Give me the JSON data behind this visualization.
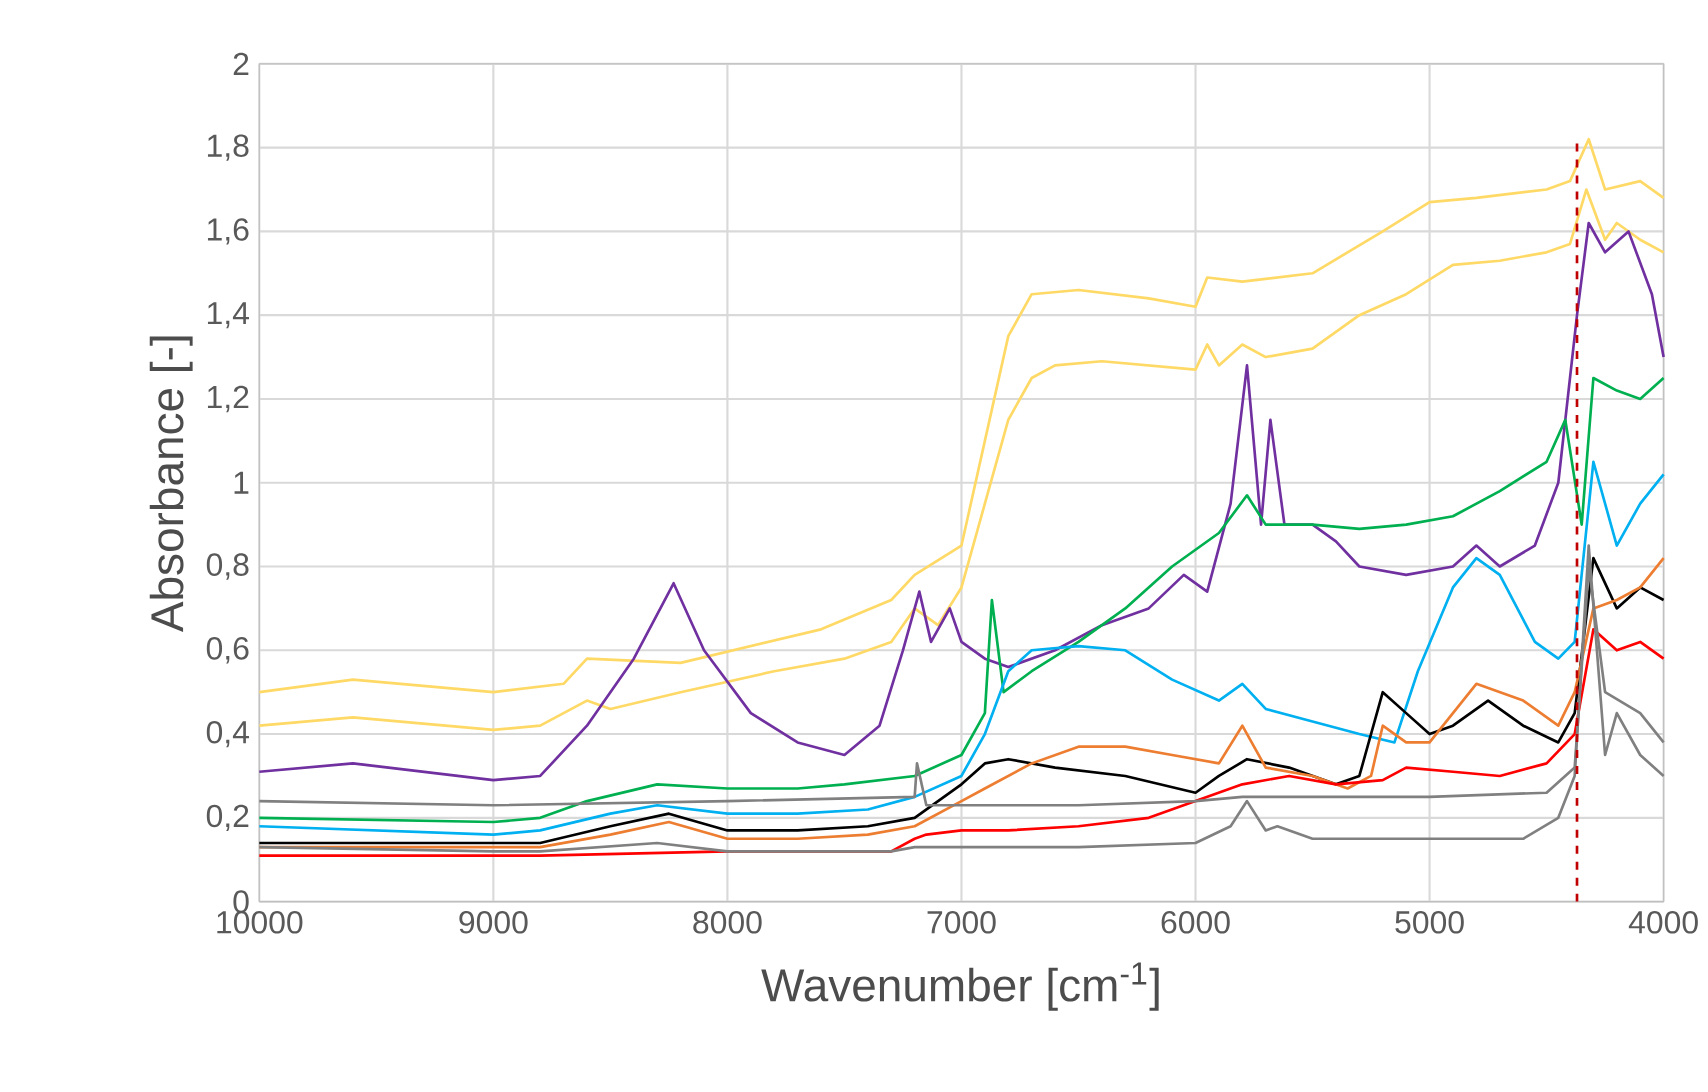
{
  "chart_data": {
    "type": "line",
    "xlabel": "Wavenumber [cm$^{-1}$]",
    "ylabel": "Absorbance [-]",
    "xlim": [
      10000,
      4000
    ],
    "xticks": [
      10000,
      9000,
      8000,
      7000,
      6000,
      5000,
      4000
    ],
    "ylim": [
      0,
      2
    ],
    "yticks": [
      0,
      {
        "value": 0.2,
        "label": "0,2"
      },
      {
        "value": 0.4,
        "label": "0,4"
      },
      {
        "value": 0.6,
        "label": "0,6"
      },
      {
        "value": 0.8,
        "label": "0,8"
      },
      1,
      {
        "value": 1.2,
        "label": "1,2"
      },
      {
        "value": 1.4,
        "label": "1,4"
      },
      {
        "value": 1.6,
        "label": "1,6"
      },
      {
        "value": 1.8,
        "label": "1,8"
      },
      2
    ],
    "grid": true,
    "line_style": "solid",
    "ref_lines": [
      {
        "axis": "x",
        "value": 4370,
        "color": "#c00000",
        "line_style": "dashed"
      }
    ],
    "series": [
      {
        "color": "#ffd966",
        "x": [
          10000,
          9600,
          9000,
          8800,
          8600,
          8500,
          8200,
          7800,
          7500,
          7300,
          7200,
          7100,
          7000,
          6900,
          6800,
          6700,
          6600,
          6400,
          6200,
          6000,
          5950,
          5900,
          5800,
          5700,
          5500,
          5300,
          5100,
          4900,
          4700,
          4500,
          4400,
          4330,
          4250,
          4200,
          4100,
          4000
        ],
        "values": [
          0.42,
          0.44,
          0.41,
          0.42,
          0.48,
          0.46,
          0.5,
          0.55,
          0.58,
          0.62,
          0.7,
          0.66,
          0.75,
          0.95,
          1.15,
          1.25,
          1.28,
          1.29,
          1.28,
          1.27,
          1.33,
          1.28,
          1.33,
          1.3,
          1.32,
          1.4,
          1.45,
          1.52,
          1.53,
          1.55,
          1.57,
          1.7,
          1.58,
          1.62,
          1.58,
          1.55
        ]
      },
      {
        "color": "#ffd966",
        "x": [
          10000,
          9600,
          9000,
          8700,
          8600,
          8200,
          7600,
          7300,
          7200,
          7000,
          6900,
          6800,
          6700,
          6500,
          6200,
          6000,
          5950,
          5800,
          5500,
          5200,
          5000,
          4800,
          4500,
          4400,
          4320,
          4250,
          4100,
          4000
        ],
        "values": [
          0.5,
          0.53,
          0.5,
          0.52,
          0.58,
          0.57,
          0.65,
          0.72,
          0.78,
          0.85,
          1.1,
          1.35,
          1.45,
          1.46,
          1.44,
          1.42,
          1.49,
          1.48,
          1.5,
          1.6,
          1.67,
          1.68,
          1.7,
          1.72,
          1.82,
          1.7,
          1.72,
          1.68
        ]
      },
      {
        "color": "#7030a0",
        "x": [
          10000,
          9600,
          9000,
          8800,
          8600,
          8400,
          8230,
          8100,
          7900,
          7700,
          7500,
          7350,
          7250,
          7180,
          7130,
          7050,
          7000,
          6900,
          6800,
          6600,
          6400,
          6200,
          6050,
          5950,
          5850,
          5780,
          5720,
          5680,
          5620,
          5500,
          5400,
          5300,
          5100,
          4900,
          4800,
          4700,
          4550,
          4450,
          4370,
          4320,
          4250,
          4150,
          4050,
          4000
        ],
        "values": [
          0.31,
          0.33,
          0.29,
          0.3,
          0.42,
          0.58,
          0.76,
          0.6,
          0.45,
          0.38,
          0.35,
          0.42,
          0.6,
          0.74,
          0.62,
          0.7,
          0.62,
          0.58,
          0.56,
          0.6,
          0.66,
          0.7,
          0.78,
          0.74,
          0.95,
          1.28,
          0.9,
          1.15,
          0.9,
          0.9,
          0.86,
          0.8,
          0.78,
          0.8,
          0.85,
          0.8,
          0.85,
          1.0,
          1.4,
          1.62,
          1.55,
          1.6,
          1.45,
          1.3
        ]
      },
      {
        "color": "#00b050",
        "x": [
          10000,
          9000,
          8800,
          8600,
          8300,
          8000,
          7700,
          7500,
          7200,
          7000,
          6900,
          6870,
          6820,
          6700,
          6500,
          6300,
          6100,
          5900,
          5780,
          5700,
          5500,
          5300,
          5100,
          4900,
          4700,
          4500,
          4420,
          4350,
          4300,
          4200,
          4100,
          4000
        ],
        "values": [
          0.2,
          0.19,
          0.2,
          0.24,
          0.28,
          0.27,
          0.27,
          0.28,
          0.3,
          0.35,
          0.45,
          0.72,
          0.5,
          0.55,
          0.62,
          0.7,
          0.8,
          0.88,
          0.97,
          0.9,
          0.9,
          0.89,
          0.9,
          0.92,
          0.98,
          1.05,
          1.15,
          0.9,
          1.25,
          1.22,
          1.2,
          1.25
        ]
      },
      {
        "color": "#00b0f0",
        "x": [
          10000,
          9000,
          8800,
          8500,
          8300,
          8000,
          7700,
          7400,
          7200,
          7000,
          6900,
          6800,
          6700,
          6500,
          6300,
          6100,
          5900,
          5800,
          5700,
          5500,
          5300,
          5150,
          5050,
          4900,
          4800,
          4700,
          4550,
          4450,
          4380,
          4300,
          4200,
          4100,
          4000
        ],
        "values": [
          0.18,
          0.16,
          0.17,
          0.21,
          0.23,
          0.21,
          0.21,
          0.22,
          0.25,
          0.3,
          0.4,
          0.55,
          0.6,
          0.61,
          0.6,
          0.53,
          0.48,
          0.52,
          0.46,
          0.43,
          0.4,
          0.38,
          0.55,
          0.75,
          0.82,
          0.78,
          0.62,
          0.58,
          0.62,
          1.05,
          0.85,
          0.95,
          1.02
        ]
      },
      {
        "color": "#000000",
        "x": [
          10000,
          9000,
          8800,
          8500,
          8250,
          8000,
          7700,
          7400,
          7200,
          7000,
          6900,
          6800,
          6600,
          6300,
          6000,
          5900,
          5780,
          5600,
          5400,
          5300,
          5200,
          5100,
          5000,
          4900,
          4750,
          4600,
          4450,
          4380,
          4300,
          4200,
          4100,
          4000
        ],
        "values": [
          0.14,
          0.14,
          0.14,
          0.18,
          0.21,
          0.17,
          0.17,
          0.18,
          0.2,
          0.28,
          0.33,
          0.34,
          0.32,
          0.3,
          0.26,
          0.3,
          0.34,
          0.32,
          0.28,
          0.3,
          0.5,
          0.45,
          0.4,
          0.42,
          0.48,
          0.42,
          0.38,
          0.45,
          0.82,
          0.7,
          0.75,
          0.72
        ]
      },
      {
        "color": "#ed7d31",
        "x": [
          10000,
          9000,
          8800,
          8500,
          8250,
          8000,
          7700,
          7400,
          7200,
          7000,
          6900,
          6700,
          6500,
          6300,
          6100,
          5900,
          5800,
          5700,
          5500,
          5350,
          5250,
          5200,
          5100,
          5000,
          4800,
          4600,
          4450,
          4380,
          4300,
          4200,
          4100,
          4000
        ],
        "values": [
          0.13,
          0.13,
          0.13,
          0.16,
          0.19,
          0.15,
          0.15,
          0.16,
          0.18,
          0.24,
          0.27,
          0.33,
          0.37,
          0.37,
          0.35,
          0.33,
          0.42,
          0.32,
          0.3,
          0.27,
          0.3,
          0.42,
          0.38,
          0.38,
          0.52,
          0.48,
          0.42,
          0.5,
          0.7,
          0.72,
          0.75,
          0.82
        ]
      },
      {
        "color": "#ff0000",
        "x": [
          10000,
          9000,
          8800,
          8000,
          7300,
          7200,
          7150,
          7000,
          6800,
          6500,
          6200,
          6000,
          5800,
          5600,
          5400,
          5200,
          5100,
          4900,
          4700,
          4500,
          4380,
          4300,
          4200,
          4100,
          4000
        ],
        "values": [
          0.11,
          0.11,
          0.11,
          0.12,
          0.12,
          0.15,
          0.16,
          0.17,
          0.17,
          0.18,
          0.2,
          0.24,
          0.28,
          0.3,
          0.28,
          0.29,
          0.32,
          0.31,
          0.3,
          0.33,
          0.4,
          0.65,
          0.6,
          0.62,
          0.58
        ]
      },
      {
        "color": "#808080",
        "x": [
          10000,
          9000,
          8800,
          8300,
          8000,
          7300,
          7200,
          7000,
          6500,
          6000,
          5850,
          5780,
          5700,
          5650,
          5500,
          5000,
          4600,
          4450,
          4380,
          4320,
          4250,
          4200,
          4100,
          4000
        ],
        "values": [
          0.13,
          0.12,
          0.12,
          0.14,
          0.12,
          0.12,
          0.13,
          0.13,
          0.13,
          0.14,
          0.18,
          0.24,
          0.17,
          0.18,
          0.15,
          0.15,
          0.15,
          0.2,
          0.3,
          0.85,
          0.35,
          0.45,
          0.35,
          0.3
        ]
      },
      {
        "color": "#808080",
        "x": [
          10000,
          9000,
          8000,
          7200,
          7190,
          7150,
          6500,
          6000,
          5800,
          5000,
          4500,
          4380,
          4320,
          4250,
          4100,
          4000
        ],
        "values": [
          0.24,
          0.23,
          0.24,
          0.25,
          0.33,
          0.23,
          0.23,
          0.24,
          0.25,
          0.25,
          0.26,
          0.32,
          0.8,
          0.5,
          0.45,
          0.38
        ]
      }
    ]
  }
}
